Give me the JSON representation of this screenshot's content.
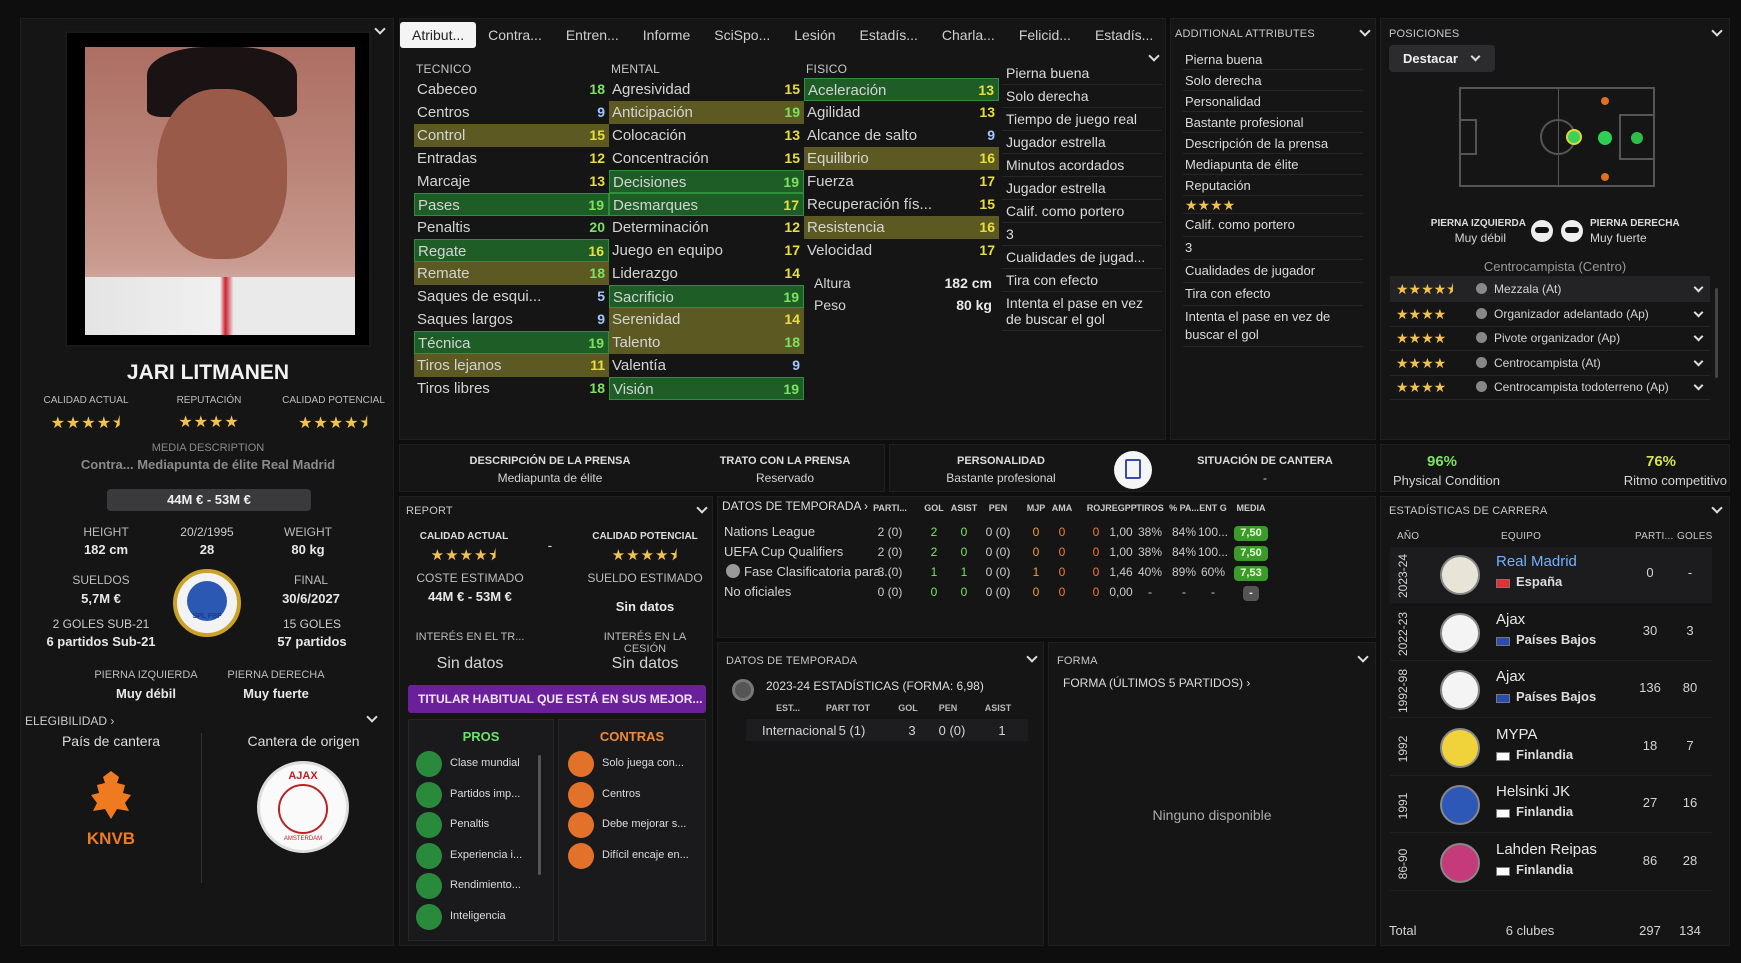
{
  "player": {
    "name": "JARI LITMANEN",
    "current_ability_label": "CALIDAD ACTUAL",
    "reputation_label": "REPUTACIÓN",
    "potential_label": "CALIDAD POTENCIAL",
    "current_stars": "★★★★⯨",
    "reputation_stars": "★★★★",
    "potential_stars": "★★★★⯨",
    "overlap_text_1": "MEDIA DESCRIPTION",
    "overlap_text_2": "Contra... Mediapunta de élite Real Madrid",
    "value": "44M € - 53M €",
    "height_label": "HEIGHT",
    "height": "182 cm",
    "dob": "20/2/1995",
    "age": "28",
    "weight_label": "WEIGHT",
    "weight": "80 kg",
    "wages_label": "SUELDOS",
    "wages": "5,7M €",
    "contract_label": "FINAL",
    "contract": "30/6/2027",
    "u21_goals": "2 GOLES SUB-21",
    "u21_apps": "6 partidos Sub-21",
    "goals": "15 GOLES",
    "apps": "57 partidos",
    "left_foot_label": "PIERNA IZQUIERDA",
    "left_foot": "Muy débil",
    "right_foot_label": "PIERNA DERECHA",
    "right_foot": "Muy fuerte",
    "eligibility": "ELEGIBILIDAD",
    "nation_label": "País de cantera",
    "club_label": "Cantera de origen",
    "knvb": "KNVB",
    "ajax_crest": "AJAX",
    "ajax_sub": "AMSTERDAM",
    "badge_text": "SPL FBF"
  },
  "tabs": [
    "Atribut...",
    "Contra...",
    "Entren...",
    "Informe",
    "SciSpo...",
    "Lesión",
    "Estadís...",
    "Charla...",
    "Felicid...",
    "Estadís..."
  ],
  "attributes": {
    "tecnico_label": "TECNICO",
    "mental_label": "MENTAL",
    "fisico_label": "FISICO",
    "tecnico": [
      [
        "Cabeceo",
        "18",
        ""
      ],
      [
        "Centros",
        "9",
        ""
      ],
      [
        "Control",
        "15",
        "o"
      ],
      [
        "Entradas",
        "12",
        ""
      ],
      [
        "Marcaje",
        "13",
        ""
      ],
      [
        "Pases",
        "19",
        "g"
      ],
      [
        "Penaltis",
        "20",
        ""
      ],
      [
        "Regate",
        "16",
        "g"
      ],
      [
        "Remate",
        "18",
        "o"
      ],
      [
        "Saques de esqui...",
        "5",
        ""
      ],
      [
        "Saques largos",
        "9",
        ""
      ],
      [
        "Técnica",
        "19",
        "g"
      ],
      [
        "Tiros lejanos",
        "11",
        "o"
      ],
      [
        "Tiros libres",
        "18",
        ""
      ]
    ],
    "mental": [
      [
        "Agresividad",
        "15",
        ""
      ],
      [
        "Anticipación",
        "19",
        "o"
      ],
      [
        "Colocación",
        "13",
        ""
      ],
      [
        "Concentración",
        "15",
        ""
      ],
      [
        "Decisiones",
        "19",
        "g"
      ],
      [
        "Desmarques",
        "17",
        "g"
      ],
      [
        "Determinación",
        "12",
        ""
      ],
      [
        "Juego en equipo",
        "17",
        ""
      ],
      [
        "Liderazgo",
        "14",
        ""
      ],
      [
        "Sacrificio",
        "19",
        "g"
      ],
      [
        "Serenidad",
        "14",
        "o"
      ],
      [
        "Talento",
        "18",
        "o"
      ],
      [
        "Valentía",
        "9",
        ""
      ],
      [
        "Visión",
        "19",
        "g"
      ]
    ],
    "fisico": [
      [
        "Aceleración",
        "13",
        "g"
      ],
      [
        "Agilidad",
        "13",
        ""
      ],
      [
        "Alcance de salto",
        "9",
        ""
      ],
      [
        "Equilibrio",
        "16",
        "o"
      ],
      [
        "Fuerza",
        "17",
        ""
      ],
      [
        "Recuperación fís...",
        "15",
        ""
      ],
      [
        "Resistencia",
        "16",
        "o"
      ],
      [
        "Velocidad",
        "17",
        ""
      ]
    ],
    "altura_label": "Altura",
    "altura": "182 cm",
    "peso_label": "Peso",
    "peso": "80 kg"
  },
  "traits": [
    "Pierna buena",
    "Solo derecha",
    "Tiempo de juego real",
    "Jugador estrella",
    "Minutos acordados",
    "Jugador estrella",
    "Calif. como portero",
    "3",
    "Cualidades de jugad...",
    "Tira con efecto",
    "Intenta el pase en vez de buscar el gol"
  ],
  "additional": {
    "title": "ADDITIONAL ATTRIBUTES",
    "items": [
      "Pierna buena",
      "Solo derecha",
      "Personalidad",
      "Bastante profesional",
      "Descripción de la prensa",
      "Mediapunta de élite",
      "Reputación"
    ],
    "rep_stars": "★★★★",
    "items2": [
      "Calif. como portero",
      "3",
      "Cualidades de jugador",
      "Tira con efecto",
      "Intenta el pase en vez de buscar el gol"
    ]
  },
  "positions": {
    "title": "POSICIONES",
    "dropdown": "Destacar",
    "left_foot_label": "PIERNA IZQUIERDA",
    "left_foot": "Muy débil",
    "right_foot_label": "PIERNA DERECHA",
    "right_foot": "Muy fuerte",
    "main_pos": "Centrocampista (Centro)",
    "roles": [
      [
        "★★★★⯨",
        "Mezzala (At)"
      ],
      [
        "★★★★",
        "Organizador adelantado (Ap)"
      ],
      [
        "★★★★",
        "Pivote organizador (Ap)"
      ],
      [
        "★★★★",
        "Centrocampista (At)"
      ],
      [
        "★★★★",
        "Centrocampista todoterreno (Ap)"
      ]
    ]
  },
  "press": {
    "desc_label": "DESCRIPCIÓN DE LA PRENSA",
    "desc": "Mediapunta de élite",
    "trato_label": "TRATO CON LA PRENSA",
    "trato": "Reservado",
    "pers_label": "PERSONALIDAD",
    "pers": "Bastante profesional",
    "cantera_label": "SITUACIÓN DE CANTERA",
    "cantera": "-"
  },
  "condition": {
    "physical": "96%",
    "physical_label": "Physical Condition",
    "ritmo": "76%",
    "ritmo_label": "Ritmo competitivo"
  },
  "report": {
    "title": "REPORT",
    "ca_label": "CALIDAD ACTUAL",
    "pa_label": "CALIDAD POTENCIAL",
    "ca_stars": "★★★★⯨",
    "pa_stars": "★★★★⯨",
    "dash": "-",
    "cost_label": "COSTE ESTIMADO",
    "cost": "44M € - 53M €",
    "wage_label": "SUELDO ESTIMADO",
    "wage": "Sin datos",
    "int_tr_label": "INTERÉS EN EL TR...",
    "int_tr": "Sin datos",
    "int_ces_label": "INTERÉS EN LA CESIÓN",
    "int_ces": "Sin datos",
    "banner": "TITULAR HABITUAL QUE ESTÁ EN SUS MEJOR...",
    "pros_label": "PROS",
    "contras_label": "CONTRAS",
    "pros": [
      "Clase mundial",
      "Partidos imp...",
      "Penaltis",
      "Experiencia i...",
      "Rendimiento...",
      "Inteligencia"
    ],
    "contras": [
      "Solo juega con...",
      "Centros",
      "Debe mejorar s...",
      "Difícil encaje en..."
    ]
  },
  "season": {
    "title": "DATOS DE TEMPORADA",
    "cols": [
      "PARTI...",
      "GOL",
      "ASIST",
      "PEN",
      "MJP",
      "AMA",
      "ROJ",
      "REGPP",
      "TIROS",
      "% PA...",
      "ENT G",
      "MEDIA"
    ],
    "rows": [
      [
        "Nations League",
        "2 (0)",
        "2",
        "0",
        "0 (0)",
        "0",
        "0",
        "0",
        "1,00",
        "38%",
        "84%",
        "100...",
        "7,50"
      ],
      [
        "UEFA Cup Qualifiers",
        "2 (0)",
        "2",
        "0",
        "0 (0)",
        "0",
        "0",
        "0",
        "1,00",
        "38%",
        "84%",
        "100...",
        "7,50"
      ],
      [
        "Fase Clasificatoria para...",
        "3 (0)",
        "1",
        "1",
        "0 (0)",
        "1",
        "0",
        "0",
        "1,46",
        "40%",
        "89%",
        "60%",
        "7,53"
      ],
      [
        "No oficiales",
        "0 (0)",
        "0",
        "0",
        "0 (0)",
        "0",
        "0",
        "0",
        "0,00",
        "-",
        "-",
        "-",
        "-"
      ]
    ]
  },
  "season2": {
    "title": "DATOS DE TEMPORADA",
    "sub": "2023-24 ESTADÍSTICAS (FORMA: 6,98)",
    "cols": [
      "EST...",
      "PART TOT",
      "GOL",
      "PEN",
      "ASIST"
    ],
    "row": [
      "Internacional",
      "5 (1)",
      "3",
      "0 (0)",
      "1"
    ]
  },
  "forma": {
    "title": "FORMA",
    "sub": "FORMA (ÚLTIMOS 5 PARTIDOS)",
    "empty": "Ninguno disponible"
  },
  "career": {
    "title": "ESTADÍSTICAS DE CARRERA",
    "col_year": "AÑO",
    "col_team": "EQUIPO",
    "col_apps": "PARTI...",
    "col_goals": "GOLES",
    "rows": [
      [
        "2023-24",
        "Real Madrid",
        "España",
        "0",
        "-"
      ],
      [
        "2022-23",
        "Ajax",
        "Países Bajos",
        "30",
        "3"
      ],
      [
        "1992-98",
        "Ajax",
        "Países Bajos",
        "136",
        "80"
      ],
      [
        "1992",
        "MYPA",
        "Finlandia",
        "18",
        "7"
      ],
      [
        "1991",
        "Helsinki JK",
        "Finlandia",
        "27",
        "16"
      ],
      [
        "86-90",
        "Lahden Reipas",
        "Finlandia",
        "86",
        "28"
      ]
    ],
    "total_label": "Total",
    "total_clubs": "6 clubes",
    "total_apps": "297",
    "total_goals": "134"
  },
  "colors": {
    "accent_green": "#2f8f3a",
    "accent_olive": "#5c5a22",
    "purple": "#6a1f9b",
    "link": "#6fb3ff"
  }
}
